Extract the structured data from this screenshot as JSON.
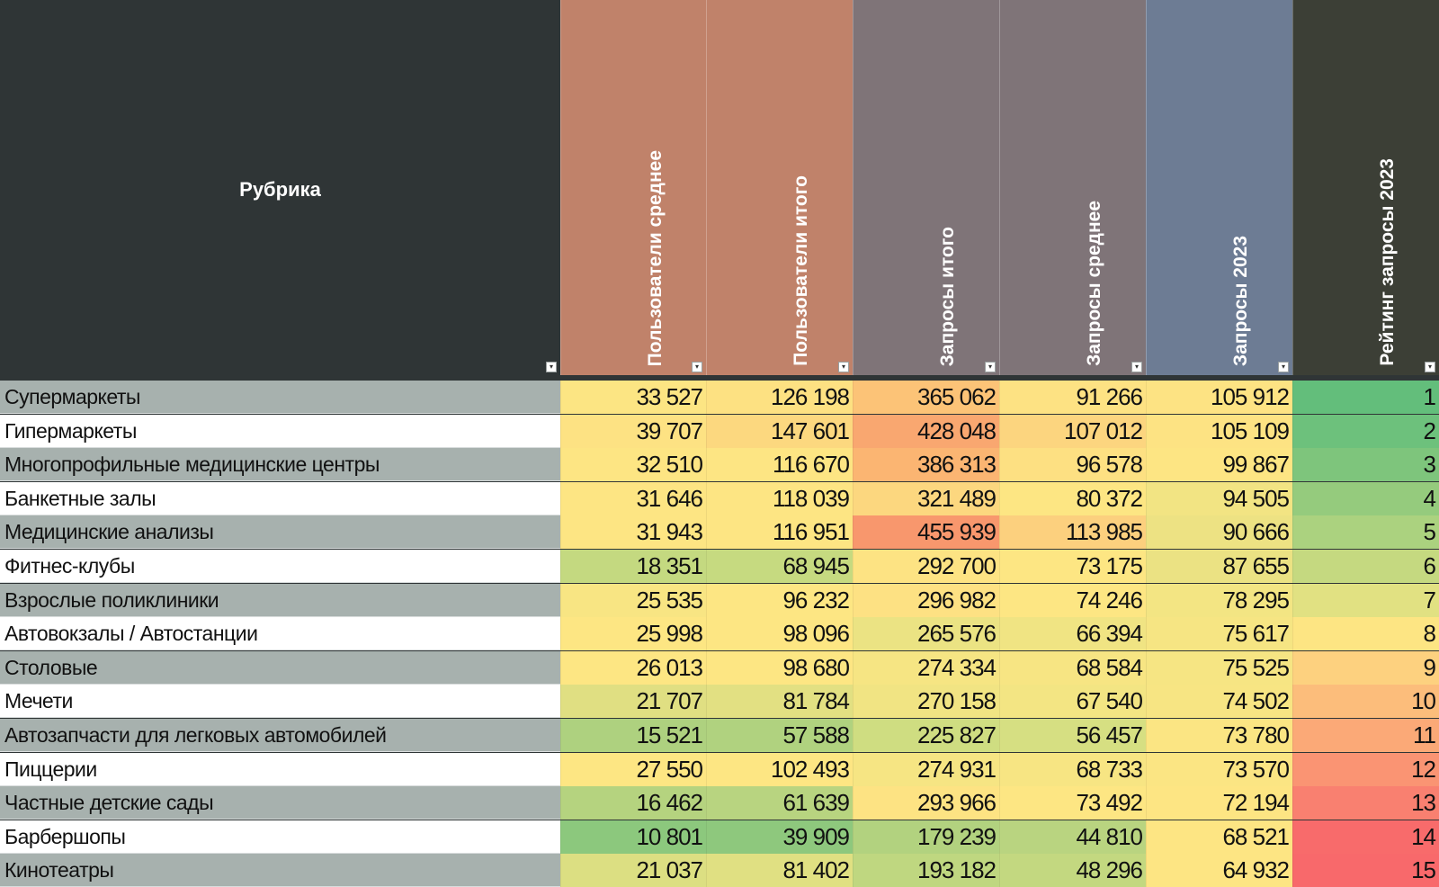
{
  "sheet": {
    "header": {
      "rubric": "Рубрика",
      "filter_icon": "dropdown-arrow-icon",
      "columns": [
        {
          "key": "users_avg",
          "label": "Пользователи среднее",
          "color": "#c0826a"
        },
        {
          "key": "users_total",
          "label": "Пользователи итого",
          "color": "#c0826a"
        },
        {
          "key": "req_total",
          "label": "Запросы итого",
          "color": "#7f7478"
        },
        {
          "key": "req_avg",
          "label": "Запросы среднее",
          "color": "#7f7478"
        },
        {
          "key": "req_2023",
          "label": "Запросы 2023",
          "color": "#6d7c94"
        },
        {
          "key": "rank_2023",
          "label": "Рейтинг запросы 2023",
          "color": "#3c3f36"
        }
      ]
    },
    "row_colors": {
      "odd": "#a7b1ae",
      "even": "#ffffff"
    },
    "rows": [
      {
        "name": "Супермаркеты",
        "values": [
          "33 527",
          "126 198",
          "365 062",
          "91 266",
          "105 912",
          "1"
        ],
        "colors": [
          "#fce583",
          "#fde182",
          "#fcc377",
          "#fde283",
          "#fde383",
          "#63be7b"
        ]
      },
      {
        "name": "Гипермаркеты",
        "values": [
          "39 707",
          "147 601",
          "428 048",
          "107 012",
          "105 109",
          "2"
        ],
        "colors": [
          "#fde283",
          "#fcd87f",
          "#f9a770",
          "#fcd57f",
          "#fde383",
          "#6dc17c"
        ]
      },
      {
        "name": "Многопрофильные медицинские центры",
        "values": [
          "32 510",
          "116 670",
          "386 313",
          "96 578",
          "99 867",
          "3"
        ],
        "colors": [
          "#fde583",
          "#fde583",
          "#fbb572",
          "#fde082",
          "#fde583",
          "#7ec57c"
        ]
      },
      {
        "name": "Банкетные залы",
        "values": [
          "31 646",
          "118 039",
          "321 489",
          "80 372",
          "94 505",
          "4"
        ],
        "colors": [
          "#fde583",
          "#fde583",
          "#fcd77f",
          "#fde683",
          "#f2e483",
          "#95cb7d"
        ]
      },
      {
        "name": "Медицинские анализы",
        "values": [
          "31 943",
          "116 951",
          "455 939",
          "113 985",
          "90 666",
          "5"
        ],
        "colors": [
          "#fde583",
          "#fde583",
          "#f8976d",
          "#fcd07e",
          "#ede283",
          "#abd27f"
        ]
      },
      {
        "name": "Фитнес-клубы",
        "values": [
          "18 351",
          "68 945",
          "292 700",
          "73 175",
          "87 655",
          "6"
        ],
        "colors": [
          "#c4d980",
          "#c6da80",
          "#fde383",
          "#fde683",
          "#ebe283",
          "#c5d980"
        ]
      },
      {
        "name": "Взрослые поликлиники",
        "values": [
          "25 535",
          "96 232",
          "296 982",
          "74 246",
          "78 295",
          "7"
        ],
        "colors": [
          "#f8e583",
          "#fde683",
          "#fde183",
          "#fde683",
          "#f3e583",
          "#e1e182"
        ]
      },
      {
        "name": "Автовокзалы / Автостанции",
        "values": [
          "25 998",
          "98 096",
          "265 576",
          "66 394",
          "75 617",
          "8"
        ],
        "colors": [
          "#fde683",
          "#fde683",
          "#ebe383",
          "#f0e483",
          "#f6e583",
          "#fde583"
        ]
      },
      {
        "name": "Столовые",
        "values": [
          "26 013",
          "98 680",
          "274 334",
          "68 584",
          "75 525",
          "9"
        ],
        "colors": [
          "#fde683",
          "#fde683",
          "#f6e583",
          "#f7e583",
          "#f6e583",
          "#fdd17f"
        ]
      },
      {
        "name": "Мечети",
        "values": [
          "21 707",
          "81 784",
          "270 158",
          "67 540",
          "74 502",
          "10"
        ],
        "colors": [
          "#e0df82",
          "#e2e082",
          "#f1e483",
          "#f3e583",
          "#f7e583",
          "#fcbd7b"
        ]
      },
      {
        "name": "Автозапчасти для легковых автомобилей",
        "values": [
          "15 521",
          "57 588",
          "225 827",
          "56 457",
          "73 780",
          "11"
        ],
        "colors": [
          "#aed17f",
          "#b0d27f",
          "#cfdd81",
          "#d6df82",
          "#fbe583",
          "#fba977"
        ]
      },
      {
        "name": "Пиццерии",
        "values": [
          "27 550",
          "102 493",
          "274 931",
          "68 733",
          "73 570",
          "12"
        ],
        "colors": [
          "#fde683",
          "#fde683",
          "#f6e583",
          "#f7e583",
          "#fbe583",
          "#fa9473"
        ]
      },
      {
        "name": "Частные детские сады",
        "values": [
          "16 462",
          "61 639",
          "293 966",
          "73 492",
          "72 194",
          "13"
        ],
        "colors": [
          "#b5d37f",
          "#b8d480",
          "#fde383",
          "#fde683",
          "#fde583",
          "#f98070"
        ]
      },
      {
        "name": "Барбершопы",
        "values": [
          "10 801",
          "39 909",
          "179 239",
          "44 810",
          "68 521",
          "14"
        ],
        "colors": [
          "#8cc87d",
          "#8ec87d",
          "#b2d27f",
          "#b9d480",
          "#fde583",
          "#f86b6b"
        ]
      },
      {
        "name": "Кинотеатры",
        "values": [
          "21 037",
          "81 402",
          "193 182",
          "48 296",
          "64 932",
          "15"
        ],
        "colors": [
          "#dcdf82",
          "#e0e082",
          "#bfd780",
          "#c3d880",
          "#fde583",
          "#f8696b"
        ]
      }
    ]
  }
}
